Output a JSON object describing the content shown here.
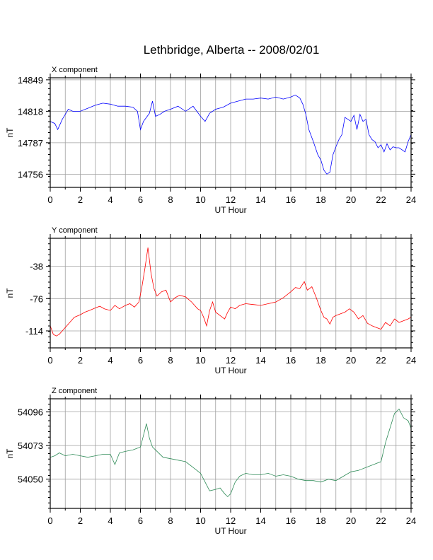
{
  "title": "Lethbridge, Alberta -- 2008/02/01",
  "chart_data": [
    {
      "type": "line",
      "panel_title": "X component",
      "xlabel": "UT Hour",
      "ylabel": "nT",
      "xlim": [
        0,
        24
      ],
      "ylim": [
        14743,
        14851
      ],
      "xticks": [
        0,
        2,
        4,
        6,
        8,
        10,
        12,
        14,
        16,
        18,
        20,
        22,
        24
      ],
      "yticks": [
        14756,
        14787,
        14818,
        14849
      ],
      "grid": true,
      "color": "#0000ff",
      "x": [
        0,
        0.3,
        0.5,
        0.8,
        1,
        1.2,
        1.5,
        2,
        2.5,
        3,
        3.5,
        4,
        4.5,
        5,
        5.5,
        5.8,
        6,
        6.2,
        6.4,
        6.6,
        6.8,
        7,
        7.3,
        7.6,
        8,
        8.5,
        9,
        9.5,
        10,
        10.3,
        10.6,
        11,
        11.5,
        12,
        12.5,
        13,
        13.5,
        14,
        14.5,
        15,
        15.5,
        16,
        16.3,
        16.6,
        16.8,
        17,
        17.2,
        17.5,
        17.8,
        18,
        18.2,
        18.4,
        18.6,
        18.8,
        19,
        19.2,
        19.4,
        19.6,
        19.8,
        20,
        20.2,
        20.4,
        20.6,
        20.8,
        21,
        21.2,
        21.4,
        21.6,
        21.8,
        22,
        22.2,
        22.4,
        22.6,
        22.8,
        23,
        23.2,
        23.4,
        23.6,
        23.8,
        24
      ],
      "y": [
        14808,
        14806,
        14800,
        14810,
        14815,
        14820,
        14818,
        14818,
        14821,
        14824,
        14826,
        14825,
        14823,
        14823,
        14822,
        14818,
        14800,
        14808,
        14812,
        14816,
        14828,
        14813,
        14815,
        14818,
        14820,
        14823,
        14818,
        14823,
        14813,
        14808,
        14816,
        14820,
        14822,
        14826,
        14828,
        14830,
        14830,
        14831,
        14830,
        14832,
        14830,
        14832,
        14834,
        14831,
        14825,
        14815,
        14800,
        14788,
        14775,
        14770,
        14760,
        14756,
        14758,
        14775,
        14783,
        14790,
        14795,
        14812,
        14810,
        14808,
        14814,
        14800,
        14815,
        14808,
        14810,
        14795,
        14790,
        14788,
        14782,
        14785,
        14778,
        14786,
        14780,
        14783,
        14782,
        14782,
        14780,
        14778,
        14788,
        14795
      ],
      "extra_ticks": [
        {
          "label": "14849",
          "y": 14849
        }
      ]
    },
    {
      "type": "line",
      "panel_title": "Y component",
      "xlabel": "UT Hour",
      "ylabel": "nT",
      "xlim": [
        0,
        24
      ],
      "ylim": [
        -134,
        -5
      ],
      "xticks": [
        0,
        2,
        4,
        6,
        8,
        10,
        12,
        14,
        16,
        18,
        20,
        22,
        24
      ],
      "yticks": [
        -38,
        -76,
        -114
      ],
      "grid": true,
      "color": "#ff0000",
      "x": [
        0,
        0.2,
        0.4,
        0.6,
        0.8,
        1,
        1.3,
        1.6,
        2,
        2.3,
        2.6,
        3,
        3.3,
        3.6,
        4,
        4.3,
        4.6,
        5,
        5.3,
        5.6,
        5.9,
        6.1,
        6.3,
        6.5,
        6.7,
        6.9,
        7.1,
        7.4,
        7.7,
        8,
        8.3,
        8.6,
        9,
        9.4,
        9.8,
        10,
        10.2,
        10.4,
        10.6,
        10.8,
        11,
        11.3,
        11.6,
        11.8,
        12,
        12.3,
        12.6,
        13,
        13.5,
        14,
        14.5,
        15,
        15.5,
        16,
        16.3,
        16.6,
        16.9,
        17.1,
        17.4,
        17.7,
        18,
        18.2,
        18.4,
        18.6,
        18.8,
        19,
        19.3,
        19.6,
        19.9,
        20.2,
        20.5,
        20.8,
        21.1,
        21.4,
        21.7,
        22,
        22.3,
        22.6,
        22.9,
        23.2,
        23.5,
        23.8,
        24
      ],
      "y": [
        -108,
        -118,
        -120,
        -118,
        -114,
        -110,
        -104,
        -98,
        -95,
        -92,
        -90,
        -87,
        -85,
        -88,
        -90,
        -84,
        -88,
        -84,
        -82,
        -86,
        -80,
        -62,
        -40,
        -16,
        -46,
        -64,
        -73,
        -68,
        -66,
        -80,
        -75,
        -72,
        -74,
        -80,
        -88,
        -90,
        -98,
        -108,
        -90,
        -80,
        -92,
        -96,
        -100,
        -92,
        -86,
        -88,
        -84,
        -82,
        -83,
        -84,
        -82,
        -80,
        -75,
        -68,
        -63,
        -64,
        -56,
        -66,
        -62,
        -75,
        -90,
        -98,
        -100,
        -106,
        -98,
        -96,
        -94,
        -92,
        -88,
        -92,
        -100,
        -96,
        -105,
        -108,
        -110,
        -112,
        -104,
        -108,
        -100,
        -104,
        -102,
        -100,
        -98
      ]
    },
    {
      "type": "line",
      "panel_title": "Z component",
      "xlabel": "UT Hour",
      "ylabel": "nT",
      "xlim": [
        0,
        24
      ],
      "ylim": [
        54030,
        54105
      ],
      "xticks": [
        0,
        2,
        4,
        6,
        8,
        10,
        12,
        14,
        16,
        18,
        20,
        22,
        24
      ],
      "yticks": [
        54050,
        54073,
        54096
      ],
      "grid": true,
      "color": "#2e8b57",
      "x": [
        0,
        0.3,
        0.6,
        1,
        1.5,
        2,
        2.5,
        3,
        3.5,
        4,
        4.3,
        4.6,
        5,
        5.5,
        6,
        6.2,
        6.4,
        6.6,
        6.8,
        7,
        7.5,
        8,
        8.5,
        9,
        9.5,
        10,
        10.3,
        10.6,
        11,
        11.3,
        11.6,
        11.8,
        12,
        12.3,
        12.6,
        13,
        13.5,
        14,
        14.5,
        15,
        15.5,
        16,
        16.5,
        17,
        17.5,
        18,
        18.5,
        19,
        19.5,
        20,
        20.5,
        21,
        21.5,
        22,
        22.3,
        22.6,
        22.9,
        23.2,
        23.5,
        23.8,
        24
      ],
      "y": [
        54065,
        54066,
        54068,
        54066,
        54067,
        54066,
        54065,
        54066,
        54067,
        54067,
        54060,
        54068,
        54069,
        54070,
        54072,
        54080,
        54088,
        54078,
        54072,
        54070,
        54065,
        54064,
        54063,
        54062,
        54058,
        54054,
        54048,
        54042,
        54043,
        54044,
        54040,
        54038,
        54040,
        54048,
        54052,
        54054,
        54053,
        54053,
        54054,
        54052,
        54053,
        54052,
        54050,
        54049,
        54049,
        54048,
        54050,
        54049,
        54052,
        54055,
        54056,
        54058,
        54060,
        54062,
        54075,
        54085,
        54095,
        54098,
        54092,
        54090,
        54085
      ]
    }
  ]
}
